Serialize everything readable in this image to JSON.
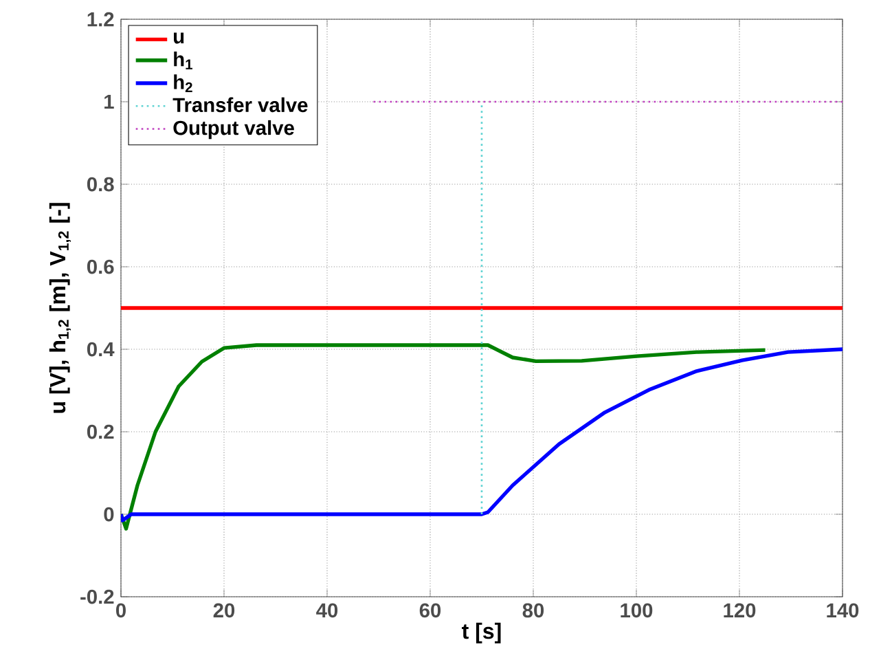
{
  "chart_data": {
    "type": "line",
    "xlabel": "t [s]",
    "ylabel": "u [V],   h$_{1,2}$ [m],   V$_{1,2}$ [-]",
    "xlim": [
      0,
      140
    ],
    "ylim": [
      -0.2,
      1.2
    ],
    "xticks": [
      0,
      20,
      40,
      60,
      80,
      100,
      120,
      140
    ],
    "yticks": [
      -0.2,
      0,
      0.2,
      0.4,
      0.6,
      0.8,
      1,
      1.2
    ],
    "grid": true,
    "legend": "top left",
    "marker": "none",
    "series": [
      {
        "name": "u",
        "color": "#ff0000",
        "x": [
          0,
          140
        ],
        "values": [
          0.5,
          0.5
        ]
      },
      {
        "name": "h$_{1}$",
        "color": "#008000",
        "x": [
          0,
          1,
          3.2,
          6.7,
          11.2,
          15.7,
          20,
          26.3,
          40,
          55,
          70,
          71.2,
          76,
          80.5,
          89.4,
          100,
          111.7,
          125
        ],
        "values": [
          0,
          -0.035,
          0.07,
          0.2,
          0.31,
          0.37,
          0.403,
          0.41,
          0.41,
          0.41,
          0.41,
          0.41,
          0.38,
          0.371,
          0.372,
          0.383,
          0.393,
          0.398
        ]
      },
      {
        "name": "h$_{2}$",
        "color": "#0000ff",
        "x": [
          0,
          0.3,
          2,
          30,
          70,
          71.2,
          76,
          85,
          93.9,
          102.7,
          111.7,
          120.5,
          129.4,
          140
        ],
        "values": [
          0,
          -0.015,
          0,
          0,
          0,
          0.005,
          0.07,
          0.17,
          0.247,
          0.303,
          0.347,
          0.373,
          0.393,
          0.4
        ]
      },
      {
        "name": "Transfer valve",
        "color": "#5fd3d3",
        "line_style": "dotted",
        "x": [
          70,
          70
        ],
        "values": [
          0,
          1
        ]
      },
      {
        "name": "Output valve",
        "color": "#bf40bf",
        "line_style": "dotted",
        "x": [
          49,
          140
        ],
        "values": [
          1,
          1
        ]
      }
    ]
  }
}
